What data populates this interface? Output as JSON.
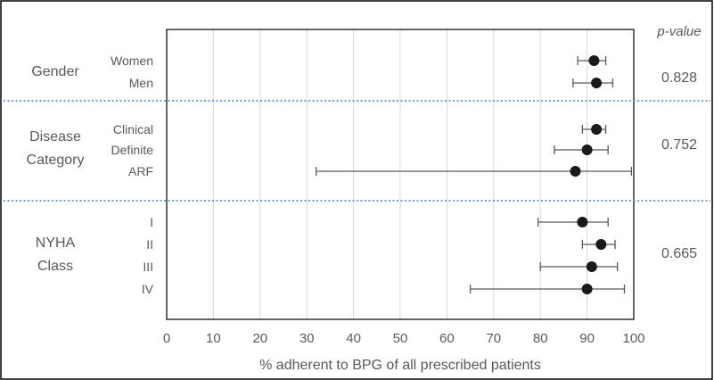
{
  "chart_data": {
    "type": "scatter",
    "subtype": "forest-plot",
    "title": "",
    "xlabel": "% adherent to BPG of all prescribed patients",
    "ylabel": "",
    "xlim": [
      0,
      100
    ],
    "x_ticks": [
      "0",
      "10",
      "20",
      "30",
      "40",
      "50",
      "60",
      "70",
      "80",
      "90",
      "100"
    ],
    "grid": "vertical",
    "pvalue_header": "p-value",
    "groups": [
      {
        "label_lines": [
          "Gender"
        ],
        "p_value": "0.828",
        "rows": [
          {
            "label": "Women",
            "point": 91.5,
            "lo": 88,
            "hi": 94
          },
          {
            "label": "Men",
            "point": 92,
            "lo": 87,
            "hi": 95.5
          }
        ]
      },
      {
        "label_lines": [
          "Disease",
          "Category"
        ],
        "p_value": "0.752",
        "rows": [
          {
            "label": "Clinical",
            "point": 92,
            "lo": 89,
            "hi": 94
          },
          {
            "label": "Definite",
            "point": 90,
            "lo": 83,
            "hi": 94.5
          },
          {
            "label": "ARF",
            "point": 87.5,
            "lo": 32,
            "hi": 99.5
          }
        ]
      },
      {
        "label_lines": [
          "NYHA",
          "Class"
        ],
        "p_value": "0.665",
        "rows": [
          {
            "label": "I",
            "point": 89,
            "lo": 79.5,
            "hi": 94.5
          },
          {
            "label": "II",
            "point": 93,
            "lo": 89,
            "hi": 96
          },
          {
            "label": "III",
            "point": 91,
            "lo": 80,
            "hi": 96.5
          },
          {
            "label": "IV",
            "point": 90,
            "lo": 65,
            "hi": 98
          }
        ]
      }
    ],
    "colors": {
      "point": "#1a1a1a",
      "whisker": "#595959",
      "grid": "#d9d9d9",
      "separator": "#4a7ebb",
      "text": "#595959",
      "frame": "#000000"
    }
  }
}
